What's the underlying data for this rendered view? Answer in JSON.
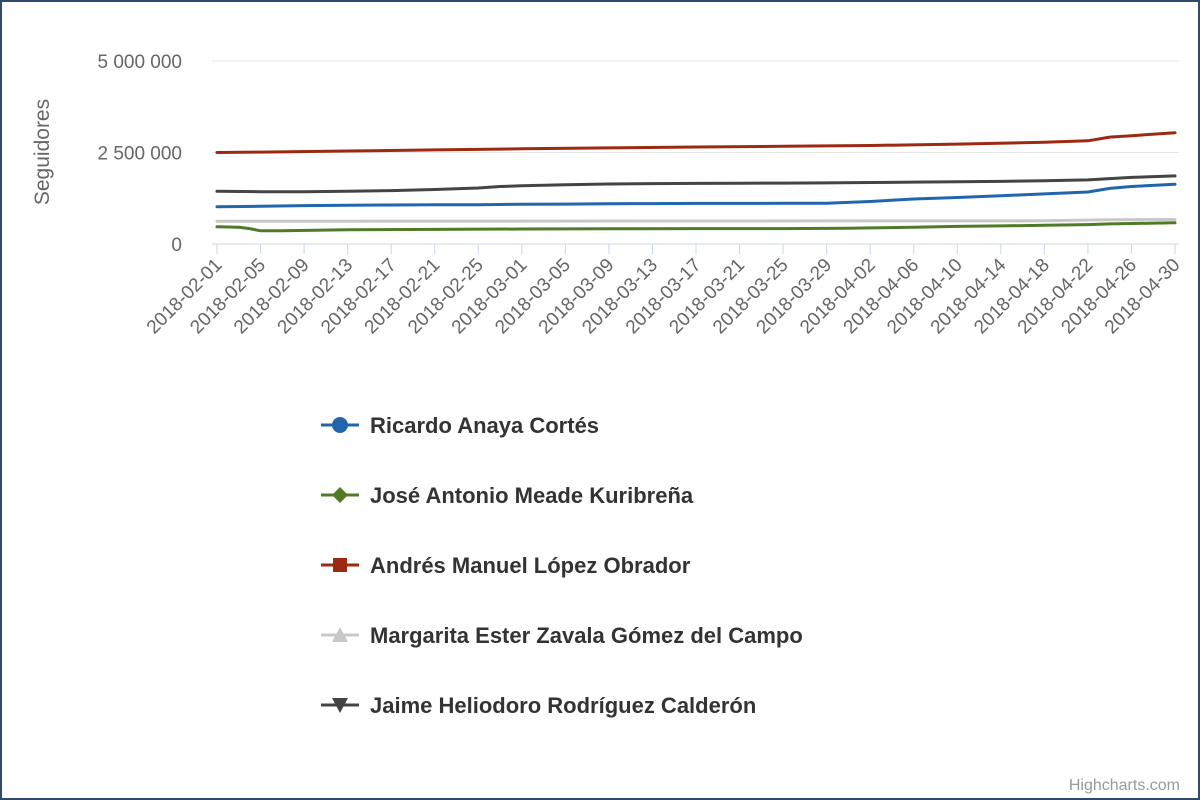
{
  "chart_data": {
    "type": "line",
    "title": "",
    "xlabel": "",
    "ylabel": "Seguidores",
    "ylim": [
      0,
      5000000
    ],
    "yticks": [
      {
        "value": 0,
        "label": "0"
      },
      {
        "value": 2500000,
        "label": "2 500 000"
      },
      {
        "value": 5000000,
        "label": "5 000 000"
      }
    ],
    "x_range": [
      "2018-02-01",
      "2018-04-30"
    ],
    "x_tick_labels": [
      "2018-02-01",
      "2018-02-05",
      "2018-02-09",
      "2018-02-13",
      "2018-02-17",
      "2018-02-21",
      "2018-02-25",
      "2018-03-01",
      "2018-03-05",
      "2018-03-09",
      "2018-03-13",
      "2018-03-17",
      "2018-03-21",
      "2018-03-25",
      "2018-03-29",
      "2018-04-02",
      "2018-04-06",
      "2018-04-10",
      "2018-04-14",
      "2018-04-18",
      "2018-04-22",
      "2018-04-26",
      "2018-04-30"
    ],
    "grid": "horizontal",
    "legend_position": "bottom",
    "series": [
      {
        "name": "Ricardo Anaya Cortés",
        "color": "#2166ac",
        "marker": "circle",
        "points": [
          [
            "2018-02-01",
            1020000
          ],
          [
            "2018-02-05",
            1030000
          ],
          [
            "2018-02-09",
            1050000
          ],
          [
            "2018-02-13",
            1060000
          ],
          [
            "2018-02-17",
            1065000
          ],
          [
            "2018-02-21",
            1070000
          ],
          [
            "2018-02-25",
            1075000
          ],
          [
            "2018-03-01",
            1085000
          ],
          [
            "2018-03-05",
            1090000
          ],
          [
            "2018-03-09",
            1100000
          ],
          [
            "2018-03-13",
            1105000
          ],
          [
            "2018-03-17",
            1108000
          ],
          [
            "2018-03-21",
            1110000
          ],
          [
            "2018-03-25",
            1112000
          ],
          [
            "2018-03-29",
            1115000
          ],
          [
            "2018-04-02",
            1160000
          ],
          [
            "2018-04-06",
            1230000
          ],
          [
            "2018-04-10",
            1270000
          ],
          [
            "2018-04-14",
            1320000
          ],
          [
            "2018-04-18",
            1370000
          ],
          [
            "2018-04-22",
            1420000
          ],
          [
            "2018-04-24",
            1520000
          ],
          [
            "2018-04-26",
            1570000
          ],
          [
            "2018-04-30",
            1630000
          ]
        ]
      },
      {
        "name": "José Antonio Meade Kuribreña",
        "color": "#4f7a28",
        "marker": "diamond",
        "points": [
          [
            "2018-02-01",
            470000
          ],
          [
            "2018-02-03",
            460000
          ],
          [
            "2018-02-04",
            420000
          ],
          [
            "2018-02-05",
            360000
          ],
          [
            "2018-02-07",
            360000
          ],
          [
            "2018-02-13",
            390000
          ],
          [
            "2018-02-21",
            400000
          ],
          [
            "2018-03-01",
            410000
          ],
          [
            "2018-03-09",
            415000
          ],
          [
            "2018-03-17",
            420000
          ],
          [
            "2018-03-25",
            420000
          ],
          [
            "2018-03-31",
            430000
          ],
          [
            "2018-04-02",
            440000
          ],
          [
            "2018-04-06",
            460000
          ],
          [
            "2018-04-10",
            480000
          ],
          [
            "2018-04-14",
            495000
          ],
          [
            "2018-04-18",
            510000
          ],
          [
            "2018-04-22",
            530000
          ],
          [
            "2018-04-24",
            550000
          ],
          [
            "2018-04-26",
            560000
          ],
          [
            "2018-04-30",
            580000
          ]
        ]
      },
      {
        "name": "Andrés Manuel López Obrador",
        "color": "#9c2a12",
        "marker": "square",
        "points": [
          [
            "2018-02-01",
            2500000
          ],
          [
            "2018-02-05",
            2510000
          ],
          [
            "2018-02-13",
            2540000
          ],
          [
            "2018-02-21",
            2570000
          ],
          [
            "2018-03-01",
            2600000
          ],
          [
            "2018-03-09",
            2625000
          ],
          [
            "2018-03-17",
            2650000
          ],
          [
            "2018-03-25",
            2670000
          ],
          [
            "2018-04-02",
            2690000
          ],
          [
            "2018-04-10",
            2730000
          ],
          [
            "2018-04-18",
            2780000
          ],
          [
            "2018-04-22",
            2820000
          ],
          [
            "2018-04-24",
            2920000
          ],
          [
            "2018-04-26",
            2960000
          ],
          [
            "2018-04-30",
            3040000
          ]
        ]
      },
      {
        "name": "Margarita Ester Zavala Gómez del Campo",
        "color": "#c8c8c8",
        "marker": "triangle",
        "points": [
          [
            "2018-02-01",
            620000
          ],
          [
            "2018-02-13",
            622000
          ],
          [
            "2018-03-01",
            625000
          ],
          [
            "2018-03-17",
            628000
          ],
          [
            "2018-04-02",
            630000
          ],
          [
            "2018-04-18",
            635000
          ],
          [
            "2018-04-24",
            660000
          ],
          [
            "2018-04-30",
            670000
          ]
        ]
      },
      {
        "name": "Jaime Heliodoro Rodríguez Calderón",
        "color": "#444444",
        "marker": "triangle-down",
        "points": [
          [
            "2018-02-01",
            1440000
          ],
          [
            "2018-02-05",
            1430000
          ],
          [
            "2018-02-09",
            1430000
          ],
          [
            "2018-02-13",
            1440000
          ],
          [
            "2018-02-17",
            1460000
          ],
          [
            "2018-02-21",
            1490000
          ],
          [
            "2018-02-25",
            1530000
          ],
          [
            "2018-02-27",
            1570000
          ],
          [
            "2018-03-01",
            1590000
          ],
          [
            "2018-03-05",
            1620000
          ],
          [
            "2018-03-09",
            1640000
          ],
          [
            "2018-03-13",
            1650000
          ],
          [
            "2018-03-17",
            1655000
          ],
          [
            "2018-03-21",
            1660000
          ],
          [
            "2018-03-25",
            1665000
          ],
          [
            "2018-03-29",
            1670000
          ],
          [
            "2018-04-02",
            1680000
          ],
          [
            "2018-04-06",
            1690000
          ],
          [
            "2018-04-10",
            1700000
          ],
          [
            "2018-04-14",
            1710000
          ],
          [
            "2018-04-18",
            1730000
          ],
          [
            "2018-04-22",
            1750000
          ],
          [
            "2018-04-26",
            1820000
          ],
          [
            "2018-04-30",
            1860000
          ]
        ]
      }
    ]
  },
  "credits": "Highcharts.com"
}
